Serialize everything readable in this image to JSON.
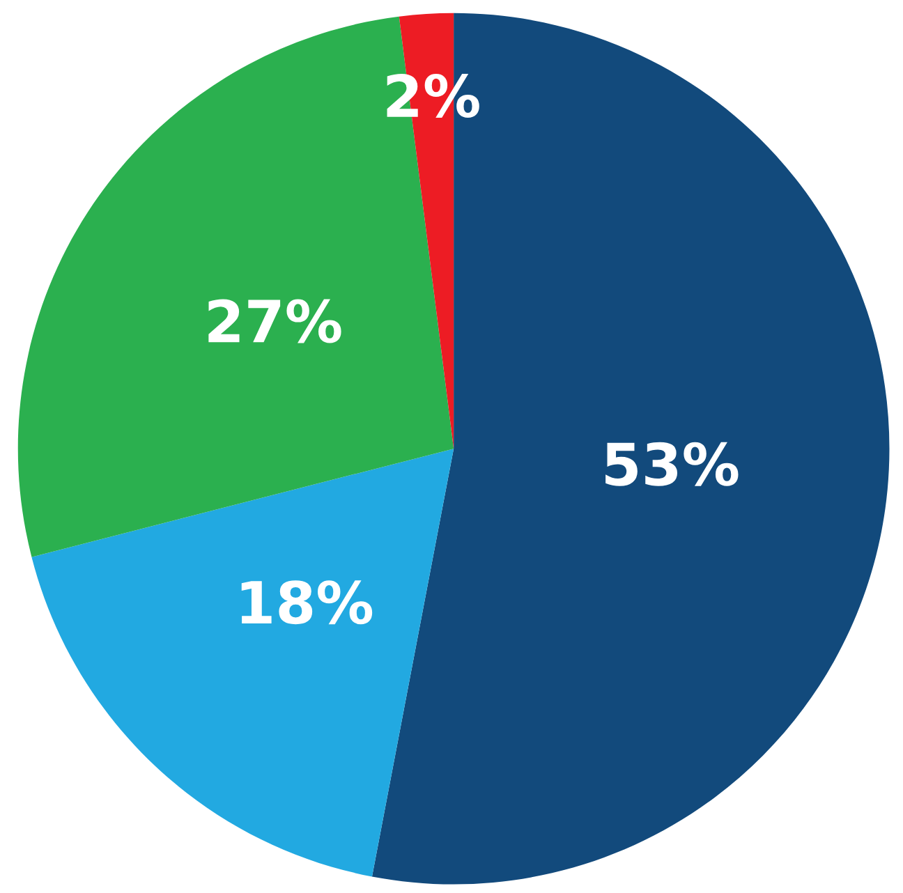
{
  "chart_data": {
    "type": "pie",
    "categories": [
      null,
      null,
      null,
      null
    ],
    "values": [
      53,
      18,
      27,
      2
    ],
    "colors": [
      "#124a7c",
      "#22a9e1",
      "#2bb04f",
      "#ed1c24"
    ],
    "value_labels": [
      "53%",
      "18%",
      "27%",
      "2%"
    ]
  }
}
